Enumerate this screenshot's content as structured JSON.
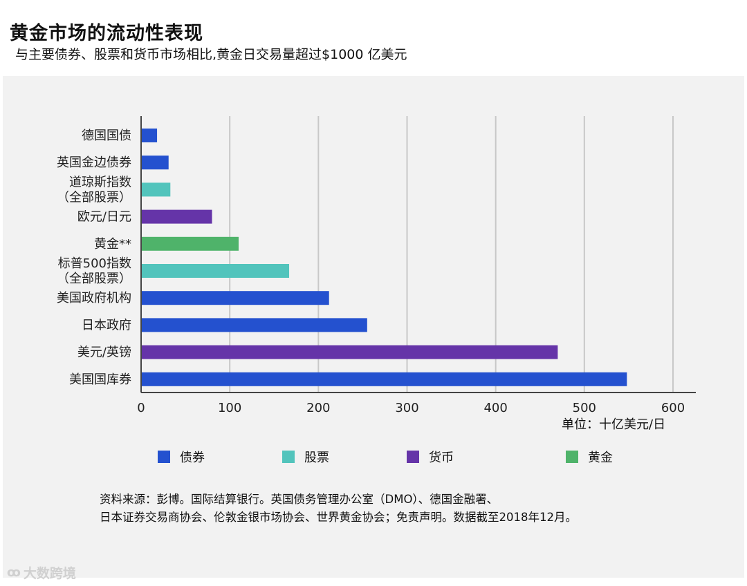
{
  "header": {
    "title": "黄金市场的流动性表现",
    "subtitle": "与主要债券、股票和货币市场相比,黄金日交易量超过$1000 亿美元"
  },
  "chart_data": {
    "type": "bar",
    "orientation": "horizontal",
    "categories": [
      "德国国债",
      "英国金边债券",
      "道琼斯指数\n（全部股票）",
      "欧元/日元",
      "黄金**",
      "标普500指数\n（全部股票）",
      "美国政府机构",
      "日本政府",
      "美元/英镑",
      "美国国库券"
    ],
    "values": [
      18,
      31,
      33,
      80,
      110,
      167,
      212,
      255,
      470,
      548
    ],
    "groups": [
      "债券",
      "债券",
      "股票",
      "货币",
      "黄金",
      "股票",
      "债券",
      "债券",
      "货币",
      "债券"
    ],
    "xlim": [
      0,
      600
    ],
    "xticks": [
      0,
      100,
      200,
      300,
      400,
      500,
      600
    ],
    "grid": true,
    "unit_label": "单位：十亿美元/日",
    "legend": [
      {
        "name": "债券",
        "color": "#2451cf"
      },
      {
        "name": "股票",
        "color": "#52c4bc"
      },
      {
        "name": "货币",
        "color": "#6534a8"
      },
      {
        "name": "黄金",
        "color": "#4fb36a"
      }
    ],
    "legend_placement": "bottom"
  },
  "source": {
    "line1": "资料来源：彭博。国际结算银行。英国债务管理办公室（DMO）、德国金融署、",
    "line2": "日本证券交易商协会、伦敦金银市场协会、世界黄金协会；免责声明。数据截至2018年12月。"
  },
  "watermark": {
    "text": "大数跨境",
    "icon": "eye-logo-icon"
  }
}
